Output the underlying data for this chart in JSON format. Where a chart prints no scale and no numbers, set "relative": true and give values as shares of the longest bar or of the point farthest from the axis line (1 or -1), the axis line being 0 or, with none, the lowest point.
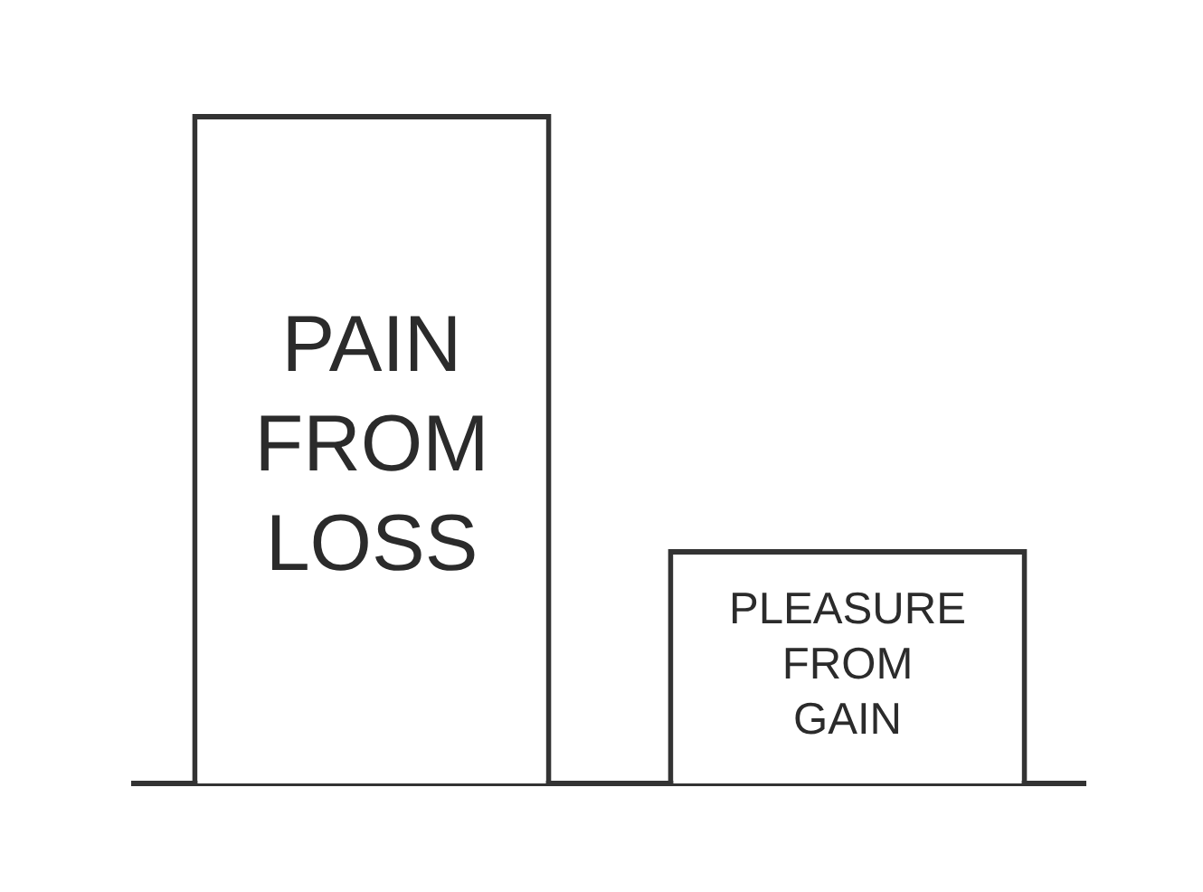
{
  "chart_data": {
    "type": "bar",
    "categories": [
      "PAIN FROM LOSS",
      "PLEASURE FROM GAIN"
    ],
    "values": [
      1,
      0.35
    ],
    "color": "#333333",
    "relative": true
  }
}
